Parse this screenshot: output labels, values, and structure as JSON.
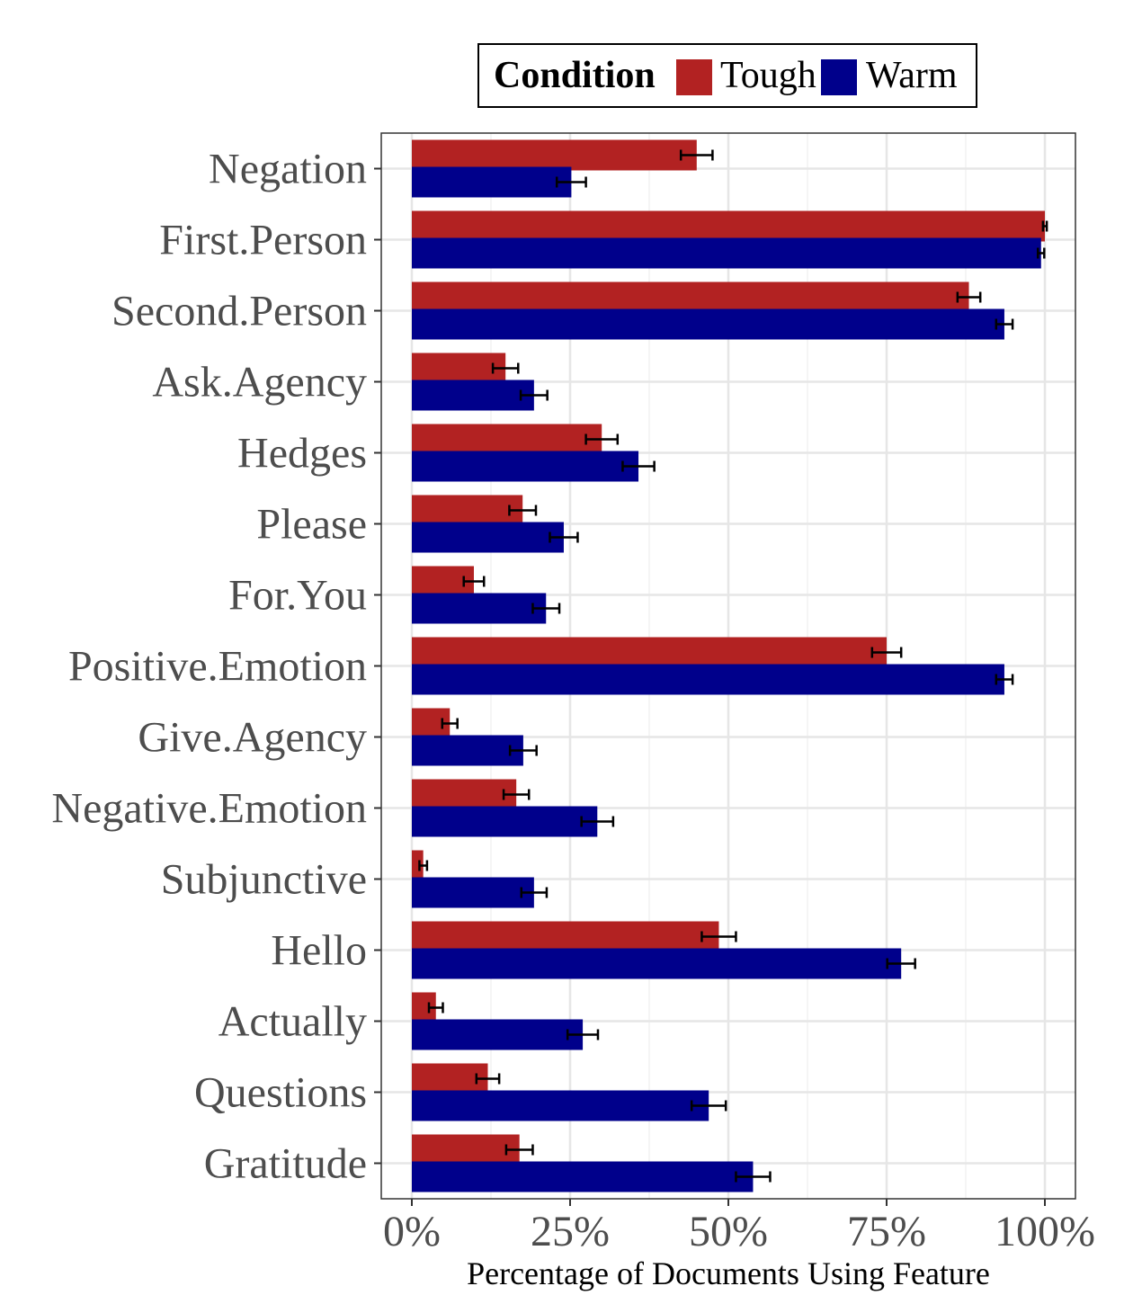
{
  "chart_data": {
    "type": "bar",
    "orientation": "horizontal",
    "xlabel": "Percentage of Documents Using Feature",
    "xlim": [
      0,
      100
    ],
    "xticks": [
      {
        "value": 0,
        "label": "0%"
      },
      {
        "value": 25,
        "label": "25%"
      },
      {
        "value": 50,
        "label": "50%"
      },
      {
        "value": 75,
        "label": "75%"
      },
      {
        "value": 100,
        "label": "100%"
      }
    ],
    "categories": [
      "Negation",
      "First.Person",
      "Second.Person",
      "Ask.Agency",
      "Hedges",
      "Please",
      "For.You",
      "Positive.Emotion",
      "Give.Agency",
      "Negative.Emotion",
      "Subjunctive",
      "Hello",
      "Actually",
      "Questions",
      "Gratitude"
    ],
    "series": [
      {
        "name": "Tough",
        "color": "#b22222",
        "values": [
          45,
          100,
          88,
          14.8,
          30,
          17.5,
          9.8,
          75,
          6,
          16.5,
          1.8,
          48.5,
          3.8,
          12,
          17
        ],
        "error": [
          2.5,
          0.3,
          1.8,
          2,
          2.5,
          2.1,
          1.6,
          2.3,
          1.2,
          2,
          0.6,
          2.7,
          1.1,
          1.8,
          2.1
        ]
      },
      {
        "name": "Warm",
        "color": "#00008b",
        "values": [
          25.2,
          99.4,
          93.6,
          19.3,
          35.8,
          24,
          21.2,
          93.6,
          17.6,
          29.3,
          19.3,
          77.3,
          27,
          46.9,
          53.9
        ],
        "error": [
          2.3,
          0.5,
          1.3,
          2.1,
          2.5,
          2.2,
          2.1,
          1.3,
          2.1,
          2.5,
          2,
          2.2,
          2.4,
          2.7,
          2.7
        ]
      }
    ],
    "legend": {
      "title": "Condition",
      "position": "top"
    },
    "grid": true
  }
}
